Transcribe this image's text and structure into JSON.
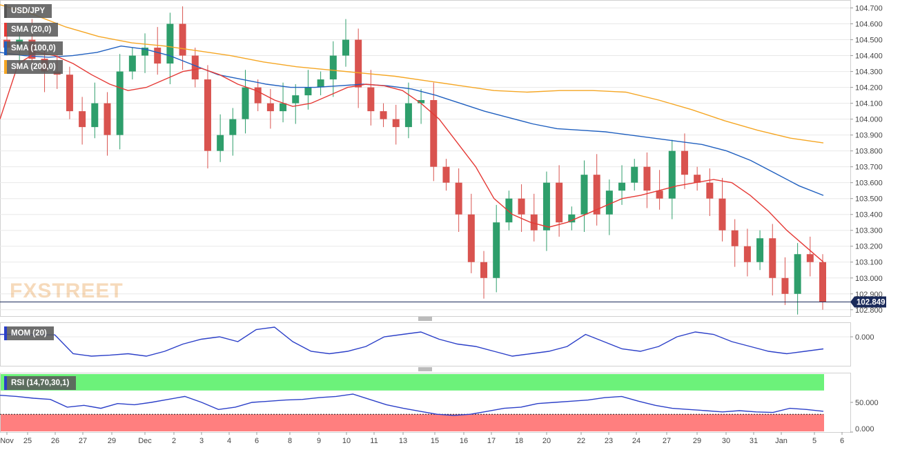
{
  "labels": {
    "symbol": "USD/JPY",
    "sma20": "SMA (20,0)",
    "sma100": "SMA (100,0)",
    "sma200": "SMA (200,0)",
    "mom": "MOM (20)",
    "rsi": "RSI (14,70,30,1)",
    "watermark": "FXSTREET",
    "last_price": "102.849"
  },
  "colors": {
    "up": "#2e9e6b",
    "down": "#d9534f",
    "sma20": "#e53935",
    "sma100": "#1f5fbf",
    "sma200": "#f5a623",
    "indicator_line": "#2b3fc8",
    "rsi_overbought_zone": "#6cf27a",
    "rsi_oversold_zone": "#ff7f7f"
  },
  "chart_data": {
    "type": "candlestick",
    "title": "USD/JPY",
    "x_tick_labels": [
      "Nov",
      "25",
      "26",
      "27",
      "29",
      "Dec",
      "2",
      "3",
      "4",
      "6",
      "8",
      "9",
      "10",
      "11",
      "13",
      "15",
      "16",
      "17",
      "18",
      "20",
      "22",
      "23",
      "24",
      "27",
      "29",
      "30",
      "31",
      "Jan",
      "5",
      "6"
    ],
    "price_axis": {
      "ticks": [
        "104.700",
        "104.600",
        "104.500",
        "104.400",
        "104.300",
        "104.200",
        "104.100",
        "104.000",
        "103.900",
        "103.800",
        "103.700",
        "103.600",
        "103.500",
        "103.400",
        "103.300",
        "103.200",
        "103.100",
        "103.000",
        "102.900",
        "102.800"
      ],
      "range": [
        102.76,
        104.75
      ]
    },
    "last_price": 102.849,
    "price_series": {
      "name": "USD/JPY",
      "close_approx": [
        104.45,
        104.5,
        104.38,
        104.3,
        104.28,
        104.05,
        103.95,
        104.1,
        103.9,
        104.3,
        104.4,
        104.45,
        104.35,
        104.6,
        104.4,
        104.25,
        103.8,
        103.9,
        104.0,
        104.2,
        104.1,
        104.05,
        104.1,
        104.15,
        104.2,
        104.25,
        104.4,
        104.5,
        104.2,
        104.05,
        104.0,
        103.95,
        104.1,
        104.12,
        103.7,
        103.6,
        103.4,
        103.1,
        103.0,
        103.35,
        103.5,
        103.4,
        103.3,
        103.6,
        103.35,
        103.4,
        103.65,
        103.4,
        103.55,
        103.6,
        103.7,
        103.55,
        103.5,
        103.8,
        103.65,
        103.6,
        103.5,
        103.3,
        103.2,
        103.1,
        103.25,
        103.0,
        102.9,
        103.15,
        103.1,
        102.85
      ]
    },
    "sma20": [
      104.0,
      104.35,
      104.42,
      104.4,
      104.35,
      104.28,
      104.22,
      104.18,
      104.2,
      104.25,
      104.3,
      104.32,
      104.28,
      104.22,
      104.18,
      104.12,
      104.08,
      104.1,
      104.15,
      104.2,
      104.22,
      104.21,
      104.18,
      104.1,
      104.0,
      103.85,
      103.7,
      103.5,
      103.4,
      103.35,
      103.32,
      103.35,
      103.4,
      103.45,
      103.5,
      103.52,
      103.55,
      103.58,
      103.6,
      103.62,
      103.6,
      103.52,
      103.42,
      103.3,
      103.2,
      103.1
    ],
    "sma100": [
      104.42,
      104.4,
      104.39,
      104.4,
      104.42,
      104.46,
      104.44,
      104.4,
      104.34,
      104.28,
      104.25,
      104.22,
      104.2,
      104.2,
      104.21,
      104.22,
      104.21,
      104.19,
      104.15,
      104.1,
      104.05,
      104.01,
      103.97,
      103.94,
      103.93,
      103.92,
      103.9,
      103.88,
      103.86,
      103.84,
      103.8,
      103.74,
      103.66,
      103.58,
      103.52
    ],
    "sma200": [
      104.72,
      104.66,
      104.58,
      104.52,
      104.48,
      104.46,
      104.43,
      104.4,
      104.36,
      104.33,
      104.31,
      104.29,
      104.27,
      104.24,
      104.21,
      104.18,
      104.17,
      104.18,
      104.18,
      104.17,
      104.12,
      104.06,
      103.99,
      103.93,
      103.88,
      103.85
    ],
    "momentum": {
      "name": "MOM (20)",
      "axis_ticks": [
        "0.000"
      ],
      "values_approx": [
        0.05,
        0.05,
        0.04,
        0.04,
        -0.35,
        -0.4,
        -0.38,
        -0.35,
        -0.4,
        -0.3,
        -0.15,
        -0.05,
        0.0,
        -0.1,
        0.15,
        0.2,
        -0.1,
        -0.3,
        -0.35,
        -0.3,
        -0.2,
        0.0,
        0.05,
        0.1,
        -0.05,
        -0.15,
        -0.2,
        -0.3,
        -0.4,
        -0.35,
        -0.3,
        -0.2,
        0.05,
        -0.1,
        -0.25,
        -0.3,
        -0.2,
        0.0,
        0.1,
        0.05,
        -0.1,
        -0.2,
        -0.3,
        -0.35,
        -0.3,
        -0.25
      ]
    },
    "rsi": {
      "name": "RSI (14,70,30,1)",
      "axis_ticks": [
        "50.000",
        "0.000"
      ],
      "overbought": 70,
      "oversold": 30,
      "values_approx": [
        62,
        60,
        57,
        55,
        42,
        45,
        40,
        48,
        46,
        50,
        55,
        60,
        50,
        38,
        42,
        50,
        52,
        54,
        55,
        58,
        60,
        64,
        55,
        46,
        40,
        35,
        30,
        28,
        30,
        35,
        40,
        42,
        48,
        50,
        52,
        54,
        58,
        60,
        52,
        45,
        40,
        38,
        36,
        34,
        36,
        34,
        33,
        40,
        38,
        35
      ]
    }
  }
}
